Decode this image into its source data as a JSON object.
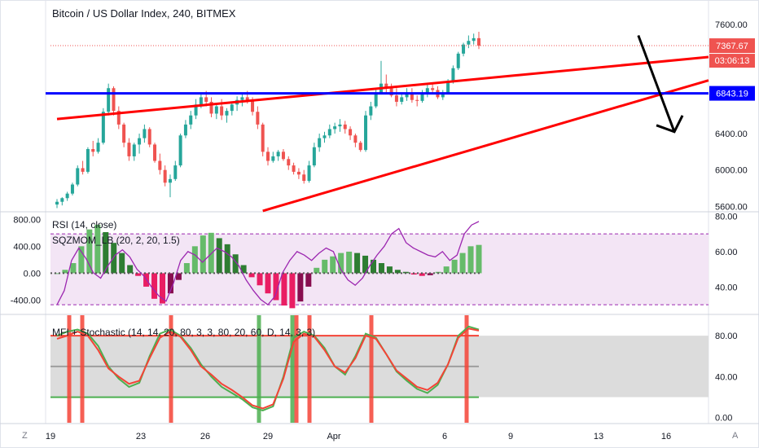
{
  "header": {
    "title": "Bitcoin / US Dollar Index, 240, BITMEX"
  },
  "colors": {
    "up": "#26a69a",
    "down": "#ef5350",
    "trendline": "#ff0000",
    "support": "#0000ff",
    "rsi": "#9c27b0",
    "mom_up_strong": "#66bb6a",
    "mom_up_weak": "#2e7d32",
    "mom_down_strong": "#e91e63",
    "mom_down_weak": "#880e4f",
    "mfi": "#4caf50",
    "stoch": "#f44336",
    "rsi_band": "#f3e5f5",
    "stoch_band": "#dcdcdc",
    "axis_text": "#131722",
    "last_price_bg": "#ef5350",
    "support_label_bg": "#0000ff"
  },
  "price_pane": {
    "last_price": "7367.67",
    "countdown": "03:06:13",
    "support_label": "6843.19"
  },
  "rsi_pane": {
    "title_rsi": "RSI (14, close)",
    "title_mom": "SQZMOM_LB (20, 2, 20, 1.5)"
  },
  "stoch_pane": {
    "title": "MFI + Stochastic (14, 14, 20, 80, 3, 3, 80, 20, 60, D, 14, 3, 3)"
  },
  "footer": {
    "left_button": "Z",
    "right_button": "A"
  },
  "chart_data": [
    {
      "type": "candlestick",
      "title": "Bitcoin / US Dollar Index, 240, BITMEX",
      "x_ticks": [
        "19",
        "23",
        "26",
        "29",
        "Apr",
        "6",
        "9",
        "13",
        "16"
      ],
      "y_ticks": [
        5600,
        6000,
        6400,
        7600
      ],
      "ylim": [
        5540,
        7870
      ],
      "last_price": 7367.67,
      "candles": [
        [
          5620,
          5680,
          5580,
          5650
        ],
        [
          5650,
          5700,
          5610,
          5690
        ],
        [
          5690,
          5760,
          5660,
          5740
        ],
        [
          5740,
          5860,
          5720,
          5840
        ],
        [
          5840,
          6050,
          5820,
          6020
        ],
        [
          6020,
          6100,
          5950,
          5980
        ],
        [
          5980,
          6250,
          5960,
          6230
        ],
        [
          6230,
          6320,
          6150,
          6200
        ],
        [
          6200,
          6350,
          6180,
          6300
        ],
        [
          6300,
          6680,
          6280,
          6640
        ],
        [
          6640,
          6950,
          6600,
          6900
        ],
        [
          6900,
          6920,
          6600,
          6650
        ],
        [
          6650,
          6700,
          6450,
          6500
        ],
        [
          6500,
          6520,
          6250,
          6300
        ],
        [
          6300,
          6350,
          6100,
          6150
        ],
        [
          6150,
          6300,
          6100,
          6280
        ],
        [
          6280,
          6400,
          6180,
          6350
        ],
        [
          6350,
          6500,
          6300,
          6450
        ],
        [
          6450,
          6470,
          6250,
          6280
        ],
        [
          6280,
          6300,
          6080,
          6100
        ],
        [
          6100,
          6180,
          5950,
          6000
        ],
        [
          6000,
          6050,
          5820,
          5860
        ],
        [
          5860,
          5950,
          5700,
          5900
        ],
        [
          5900,
          6100,
          5880,
          6050
        ],
        [
          6050,
          6400,
          6030,
          6380
        ],
        [
          6380,
          6550,
          6350,
          6500
        ],
        [
          6500,
          6650,
          6450,
          6600
        ],
        [
          6600,
          6780,
          6560,
          6720
        ],
        [
          6720,
          6830,
          6680,
          6800
        ],
        [
          6800,
          6870,
          6700,
          6750
        ],
        [
          6750,
          6800,
          6580,
          6620
        ],
        [
          6620,
          6720,
          6560,
          6700
        ],
        [
          6700,
          6780,
          6550,
          6600
        ],
        [
          6600,
          6680,
          6520,
          6650
        ],
        [
          6650,
          6750,
          6600,
          6720
        ],
        [
          6720,
          6810,
          6650,
          6770
        ],
        [
          6770,
          6850,
          6700,
          6800
        ],
        [
          6800,
          6870,
          6730,
          6760
        ],
        [
          6760,
          6800,
          6600,
          6640
        ],
        [
          6640,
          6700,
          6450,
          6500
        ],
        [
          6500,
          6520,
          6150,
          6200
        ],
        [
          6200,
          6250,
          6050,
          6100
        ],
        [
          6100,
          6200,
          6080,
          6150
        ],
        [
          6150,
          6220,
          6100,
          6200
        ],
        [
          6200,
          6230,
          6100,
          6120
        ],
        [
          6120,
          6150,
          6000,
          6050
        ],
        [
          6050,
          6080,
          5950,
          5980
        ],
        [
          5980,
          6020,
          5900,
          5950
        ],
        [
          5950,
          6000,
          5850,
          5880
        ],
        [
          5880,
          6100,
          5860,
          6050
        ],
        [
          6050,
          6300,
          6030,
          6250
        ],
        [
          6250,
          6400,
          6200,
          6350
        ],
        [
          6350,
          6420,
          6300,
          6380
        ],
        [
          6380,
          6500,
          6350,
          6450
        ],
        [
          6450,
          6520,
          6400,
          6480
        ],
        [
          6480,
          6560,
          6420,
          6500
        ],
        [
          6500,
          6540,
          6400,
          6450
        ],
        [
          6450,
          6480,
          6330,
          6380
        ],
        [
          6380,
          6400,
          6250,
          6300
        ],
        [
          6300,
          6320,
          6200,
          6220
        ],
        [
          6220,
          6650,
          6200,
          6600
        ],
        [
          6600,
          6750,
          6550,
          6700
        ],
        [
          6700,
          6900,
          6680,
          6850
        ],
        [
          6850,
          7200,
          6830,
          6950
        ],
        [
          6950,
          7050,
          6850,
          6900
        ],
        [
          6900,
          6950,
          6800,
          6820
        ],
        [
          6820,
          6900,
          6700,
          6750
        ],
        [
          6750,
          6850,
          6720,
          6800
        ],
        [
          6800,
          6900,
          6760,
          6850
        ],
        [
          6850,
          6900,
          6740,
          6770
        ],
        [
          6770,
          6820,
          6700,
          6760
        ],
        [
          6760,
          6880,
          6740,
          6850
        ],
        [
          6850,
          6950,
          6800,
          6900
        ],
        [
          6900,
          6950,
          6850,
          6880
        ],
        [
          6880,
          6920,
          6780,
          6800
        ],
        [
          6800,
          6880,
          6770,
          6850
        ],
        [
          6850,
          7000,
          6830,
          6980
        ],
        [
          6980,
          7150,
          6950,
          7120
        ],
        [
          7120,
          7300,
          7100,
          7280
        ],
        [
          7280,
          7400,
          7250,
          7380
        ],
        [
          7380,
          7480,
          7340,
          7420
        ],
        [
          7420,
          7500,
          7380,
          7450
        ],
        [
          7450,
          7520,
          7330,
          7367.67
        ]
      ],
      "annotations": {
        "upper_trendline": {
          "points": [
            [
              0,
              6560
            ],
            [
              180,
              7530
            ]
          ]
        },
        "lower_trendline": {
          "points": [
            [
              40,
              5550
            ],
            [
              180,
              7870
            ]
          ]
        },
        "support_line": {
          "y": 6843.19
        },
        "arrow": {
          "from": [
            113,
            7480
          ],
          "to": [
            120,
            6420
          ]
        }
      }
    },
    {
      "type": "line+histogram",
      "series": [
        {
          "name": "RSI (14, close)",
          "values": [
            30,
            38,
            55,
            62,
            56,
            48,
            45,
            52,
            58,
            61,
            57,
            50,
            46,
            40,
            35,
            32,
            42,
            55,
            60,
            58,
            54,
            58,
            62,
            60,
            57,
            52,
            44,
            38,
            33,
            30,
            35,
            48,
            55,
            60,
            58,
            55,
            59,
            62,
            60,
            50,
            44,
            41,
            45,
            52,
            58,
            63,
            70,
            73,
            65,
            62,
            60,
            58,
            57,
            60,
            55,
            58,
            70,
            75,
            77
          ]
        },
        {
          "name": "SQZMOM_LB (20, 2, 20, 1.5)",
          "values": [
            0,
            50,
            150,
            400,
            650,
            720,
            610,
            450,
            300,
            120,
            -40,
            -200,
            -380,
            -450,
            -300,
            -100,
            150,
            400,
            560,
            600,
            520,
            430,
            280,
            120,
            -60,
            -180,
            -300,
            -400,
            -480,
            -520,
            -420,
            -200,
            80,
            200,
            250,
            300,
            320,
            300,
            260,
            200,
            150,
            100,
            50,
            20,
            -20,
            -40,
            -30,
            20,
            100,
            200,
            300,
            400,
            420
          ]
        }
      ],
      "y_ticks_left": [
        800,
        400,
        0,
        -400
      ],
      "y_ticks_right": [
        80,
        60,
        40
      ],
      "ylim_left": [
        -600,
        900
      ],
      "ylim_right": [
        25,
        82
      ]
    },
    {
      "type": "line",
      "series": [
        {
          "name": "MFI",
          "values": [
            80,
            84,
            86,
            82,
            70,
            50,
            38,
            30,
            34,
            60,
            82,
            86,
            80,
            68,
            52,
            40,
            30,
            24,
            18,
            10,
            7,
            11,
            40,
            78,
            84,
            80,
            68,
            50,
            42,
            60,
            82,
            78,
            62,
            45,
            36,
            28,
            24,
            32,
            52,
            80,
            89,
            86
          ]
        },
        {
          "name": "Stochastic",
          "values": [
            77,
            80,
            84,
            80,
            66,
            48,
            40,
            33,
            36,
            58,
            78,
            84,
            79,
            66,
            50,
            42,
            33,
            27,
            20,
            12,
            9,
            13,
            38,
            74,
            82,
            79,
            66,
            50,
            44,
            58,
            80,
            77,
            62,
            46,
            38,
            30,
            27,
            34,
            52,
            78,
            87,
            85
          ]
        }
      ],
      "y_ticks": [
        80,
        40,
        0
      ],
      "ylim": [
        -5,
        100
      ],
      "levels": [
        80,
        50,
        20
      ]
    }
  ]
}
